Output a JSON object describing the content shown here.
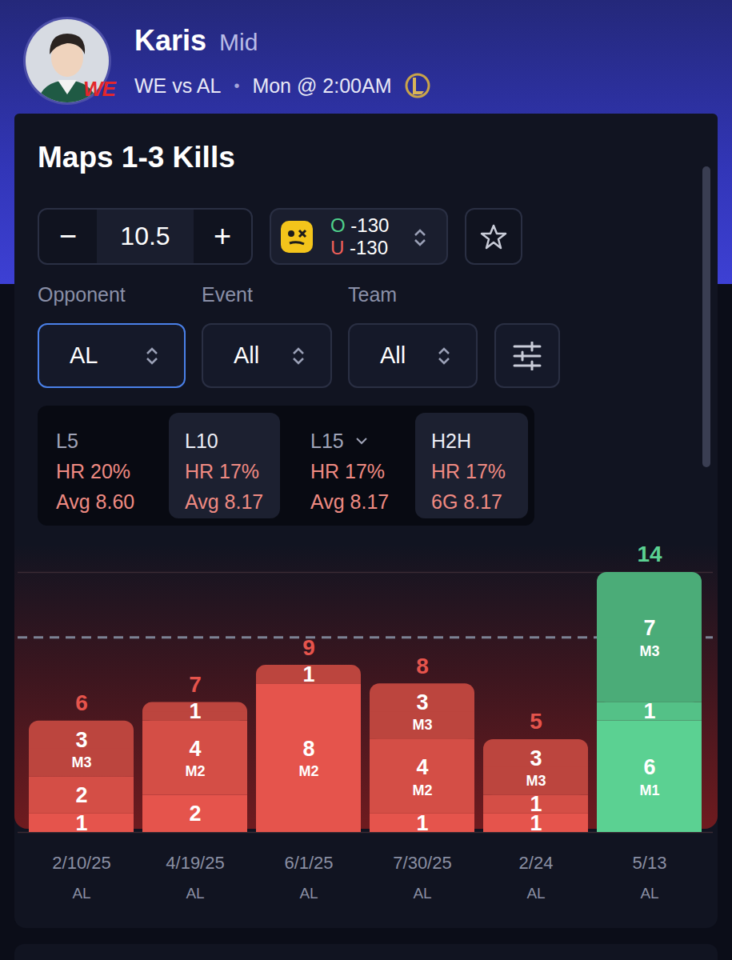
{
  "header": {
    "name": "Karis",
    "role": "Mid",
    "team_logo": "WE",
    "matchup": "WE vs AL",
    "separator": "•",
    "time": "Mon @ 2:00AM"
  },
  "panel": {
    "title": "Maps 1-3 Kills",
    "decrement": "−",
    "increment": "+",
    "over": {
      "label": "O",
      "odds": "-130"
    },
    "under": {
      "label": "U",
      "odds": "-130"
    },
    "filters": [
      {
        "label": "Opponent",
        "value": "AL"
      },
      {
        "label": "Event",
        "value": "All"
      },
      {
        "label": "Team",
        "value": "All"
      }
    ],
    "stats": [
      {
        "label": "L5",
        "hit_rate": "HR 20%",
        "average": "Avg 8.60",
        "selected": false
      },
      {
        "label": "L10",
        "hit_rate": "HR 17%",
        "average": "Avg 8.17",
        "selected": true
      },
      {
        "label": "L15",
        "hit_rate": "HR 17%",
        "average": "Avg 8.17",
        "selected": false
      },
      {
        "label": "H2H",
        "hit_rate": "HR 17%",
        "average": "6G 8.17",
        "selected": true
      }
    ]
  },
  "chart_data": {
    "type": "bar",
    "stacked": true,
    "data_labels": true,
    "grid": true,
    "tick_labels": false,
    "categories": [
      "2/10/25",
      "4/19/25",
      "6/1/25",
      "7/30/25",
      "2/24",
      "5/13"
    ],
    "opponents": [
      "AL",
      "AL",
      "AL",
      "AL",
      "AL",
      "AL"
    ],
    "segments": [
      [
        1,
        2,
        3
      ],
      [
        2,
        4,
        1
      ],
      [
        8,
        1
      ],
      [
        1,
        4,
        3
      ],
      [
        1,
        1,
        3
      ],
      [
        6,
        1,
        7
      ]
    ],
    "segment_labels": [
      [
        null,
        null,
        "M3"
      ],
      [
        null,
        "M2",
        null
      ],
      [
        "M2",
        null
      ],
      [
        null,
        "M2",
        "M3"
      ],
      [
        null,
        null,
        "M3"
      ],
      [
        "M1",
        null,
        "M3"
      ]
    ],
    "totals": [
      6,
      7,
      9,
      8,
      5,
      14
    ],
    "colors": [
      "#e5544c",
      "#e5544c",
      "#e5544c",
      "#e5544c",
      "#e5544c",
      "#5bd192"
    ],
    "threshold": 10.5,
    "ylim": [
      0,
      14
    ],
    "yticks": [
      0,
      14
    ]
  }
}
